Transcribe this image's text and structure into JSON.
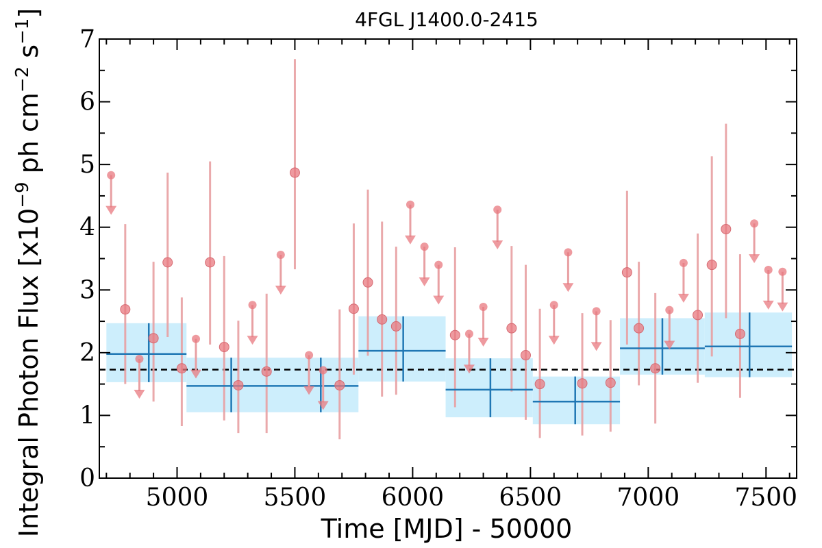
{
  "chart_data": {
    "type": "scatter",
    "title": "4FGL J1400.0-2415",
    "xlabel": "Time [MJD] - 50000",
    "ylabel": "Integral Photon Flux [x10",
    "ylabel_sup1": "−9",
    "ylabel_mid": " ph cm",
    "ylabel_sup2": "−2",
    "ylabel_mid2": " s",
    "ylabel_sup3": "−1",
    "ylabel_end": "]",
    "xlim": [
      4670,
      7630
    ],
    "ylim": [
      0,
      7
    ],
    "xticks": [
      5000,
      5500,
      6000,
      6500,
      7000,
      7500
    ],
    "xtick_labels": [
      "5000",
      "5500",
      "6000",
      "6500",
      "7000",
      "7500"
    ],
    "yticks": [
      0,
      1,
      2,
      3,
      4,
      5,
      6,
      7
    ],
    "ytick_labels": [
      "0",
      "1",
      "2",
      "3",
      "4",
      "5",
      "6",
      "7"
    ],
    "mean_flux": 1.73,
    "colors": {
      "points": "#e8787f",
      "errorbars": "#e8a0a3",
      "bins": "#1f77b4",
      "band": "#cdeefc",
      "mean_line": "#000000"
    },
    "detections": [
      {
        "x": 4780,
        "y": 2.69,
        "lo": 1.5,
        "hi": 4.05
      },
      {
        "x": 4900,
        "y": 2.23,
        "lo": 1.22,
        "hi": 3.45
      },
      {
        "x": 4960,
        "y": 3.44,
        "lo": 2.25,
        "hi": 4.87
      },
      {
        "x": 5020,
        "y": 1.75,
        "lo": 0.83,
        "hi": 2.88
      },
      {
        "x": 5140,
        "y": 3.44,
        "lo": 2.13,
        "hi": 5.05
      },
      {
        "x": 5200,
        "y": 2.09,
        "lo": 0.92,
        "hi": 3.54
      },
      {
        "x": 5260,
        "y": 1.48,
        "lo": 0.72,
        "hi": 2.51
      },
      {
        "x": 5380,
        "y": 1.7,
        "lo": 0.72,
        "hi": 2.94
      },
      {
        "x": 5500,
        "y": 4.87,
        "lo": 3.33,
        "hi": 6.68
      },
      {
        "x": 5690,
        "y": 1.48,
        "lo": 0.62,
        "hi": 2.69
      },
      {
        "x": 5750,
        "y": 2.7,
        "lo": 1.65,
        "hi": 4.06
      },
      {
        "x": 5810,
        "y": 3.12,
        "lo": 1.95,
        "hi": 4.6
      },
      {
        "x": 5870,
        "y": 2.53,
        "lo": 1.3,
        "hi": 4.09
      },
      {
        "x": 5930,
        "y": 2.42,
        "lo": 1.33,
        "hi": 3.69
      },
      {
        "x": 6180,
        "y": 2.28,
        "lo": 1.13,
        "hi": 3.68
      },
      {
        "x": 6420,
        "y": 2.39,
        "lo": 1.38,
        "hi": 3.7
      },
      {
        "x": 6480,
        "y": 1.96,
        "lo": 0.93,
        "hi": 3.4
      },
      {
        "x": 6540,
        "y": 1.5,
        "lo": 0.64,
        "hi": 2.7
      },
      {
        "x": 6720,
        "y": 1.51,
        "lo": 0.68,
        "hi": 2.63
      },
      {
        "x": 6840,
        "y": 1.52,
        "lo": 0.74,
        "hi": 2.52
      },
      {
        "x": 6910,
        "y": 3.28,
        "lo": 2.13,
        "hi": 4.58
      },
      {
        "x": 6960,
        "y": 2.39,
        "lo": 1.48,
        "hi": 3.45
      },
      {
        "x": 7030,
        "y": 1.75,
        "lo": 0.87,
        "hi": 2.95
      },
      {
        "x": 7210,
        "y": 2.6,
        "lo": 1.52,
        "hi": 3.9
      },
      {
        "x": 7270,
        "y": 3.4,
        "lo": 1.94,
        "hi": 5.13
      },
      {
        "x": 7330,
        "y": 3.97,
        "lo": 2.55,
        "hi": 5.65
      },
      {
        "x": 7390,
        "y": 2.3,
        "lo": 1.28,
        "hi": 3.57
      }
    ],
    "upper_limits": [
      {
        "x": 4720,
        "y": 4.83
      },
      {
        "x": 4840,
        "y": 1.9
      },
      {
        "x": 5080,
        "y": 2.22
      },
      {
        "x": 5320,
        "y": 2.76
      },
      {
        "x": 5440,
        "y": 3.56
      },
      {
        "x": 5560,
        "y": 1.96
      },
      {
        "x": 5620,
        "y": 1.72
      },
      {
        "x": 5990,
        "y": 4.36
      },
      {
        "x": 6050,
        "y": 3.69
      },
      {
        "x": 6110,
        "y": 3.4
      },
      {
        "x": 6240,
        "y": 2.3
      },
      {
        "x": 6300,
        "y": 2.73
      },
      {
        "x": 6360,
        "y": 4.28
      },
      {
        "x": 6600,
        "y": 2.76
      },
      {
        "x": 6660,
        "y": 3.6
      },
      {
        "x": 6780,
        "y": 2.66
      },
      {
        "x": 7090,
        "y": 2.68
      },
      {
        "x": 7150,
        "y": 3.43
      },
      {
        "x": 7450,
        "y": 4.06
      },
      {
        "x": 7510,
        "y": 3.32
      },
      {
        "x": 7570,
        "y": 3.29
      }
    ],
    "bins": [
      {
        "x0": 4700,
        "x1": 5040,
        "xc": 4880,
        "y": 1.98,
        "lo": 1.53,
        "hi": 2.47
      },
      {
        "x0": 5040,
        "x1": 5770,
        "xc": 5230,
        "y": 1.47,
        "lo": 1.05,
        "hi": 1.92,
        "xc2": 5610
      },
      {
        "x0": 5770,
        "x1": 6140,
        "xc": 5960,
        "y": 2.03,
        "lo": 1.54,
        "hi": 2.58
      },
      {
        "x0": 6140,
        "x1": 6510,
        "xc": 6330,
        "y": 1.41,
        "lo": 0.97,
        "hi": 1.91
      },
      {
        "x0": 6510,
        "x1": 6880,
        "xc": 6690,
        "y": 1.22,
        "lo": 0.86,
        "hi": 1.62
      },
      {
        "x0": 6880,
        "x1": 7240,
        "xc": 7060,
        "y": 2.07,
        "lo": 1.65,
        "hi": 2.55
      },
      {
        "x0": 7240,
        "x1": 7610,
        "xc": 7430,
        "y": 2.1,
        "lo": 1.61,
        "hi": 2.64
      }
    ]
  }
}
